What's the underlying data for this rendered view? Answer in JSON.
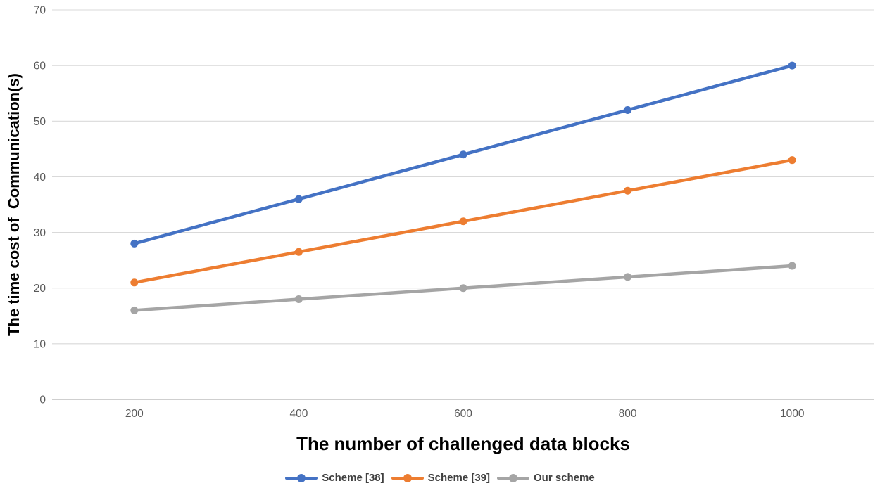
{
  "chart_data": {
    "type": "line",
    "xlabel": "The number of challenged data blocks",
    "ylabel": "The time cost of  Communication(s)",
    "categories": [
      "200",
      "400",
      "600",
      "800",
      "1000"
    ],
    "yticks": [
      0,
      10,
      20,
      30,
      40,
      50,
      60,
      70
    ],
    "ylim": [
      0,
      70
    ],
    "grid": "horizontal",
    "legend_position": "bottom",
    "series": [
      {
        "name": "Scheme [38]",
        "color": "#4472C4",
        "values": [
          28,
          36,
          44,
          52,
          60
        ]
      },
      {
        "name": "Scheme [39]",
        "color": "#ED7D31",
        "values": [
          21,
          26.5,
          32,
          37.5,
          43
        ]
      },
      {
        "name": "Our scheme",
        "color": "#A5A5A5",
        "values": [
          16,
          18,
          20,
          22,
          24
        ]
      }
    ]
  },
  "colors": {
    "background": "#FFFFFF",
    "gridline": "#D9D9D9",
    "axis_line": "#BFBFBF",
    "tick_label": "#595959",
    "axis_title": "#000000",
    "legend_text": "#404040"
  }
}
